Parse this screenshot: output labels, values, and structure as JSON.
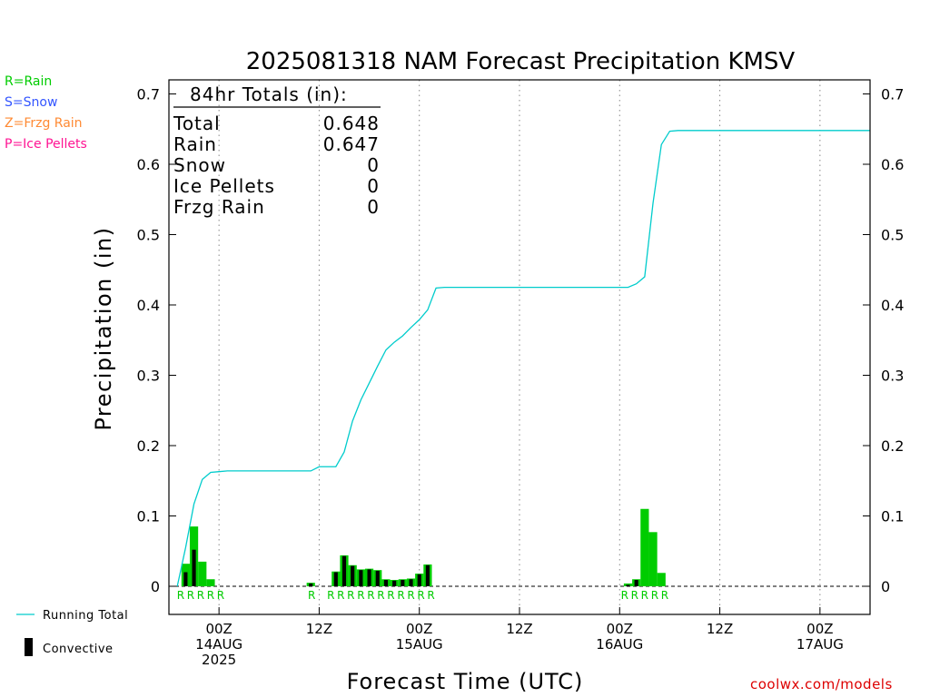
{
  "colors": {
    "rain": "#00cc00",
    "snow": "#3355ff",
    "frzg_rain": "#ff8a33",
    "ice_pellets": "#ff1493",
    "running_total": "#00cccc",
    "convective": "#000000",
    "watermark": "#dd0000"
  },
  "type_legend": [
    {
      "label": "R=Rain",
      "color": "#00cc00"
    },
    {
      "label": "S=Snow",
      "color": "#3355ff"
    },
    {
      "label": "Z=Frzg Rain",
      "color": "#ff8a33"
    },
    {
      "label": "P=Ice Pellets",
      "color": "#ff1493"
    }
  ],
  "series_legend": {
    "running_total": "Running Total",
    "convective": "Convective"
  },
  "watermark": "coolwx.com/models",
  "chart_data": {
    "type": "bar",
    "title": "2025081318 NAM Forecast Precipitation KMSV",
    "xlabel": "Forecast Time (UTC)",
    "ylabel": "Precipitation (in)",
    "ylim": [
      -0.04,
      0.72
    ],
    "yticks": [
      0,
      0.1,
      0.2,
      0.3,
      0.4,
      0.5,
      0.6,
      0.7
    ],
    "ytick_labels": [
      "0",
      "0.1",
      "0.2",
      "0.3",
      "0.4",
      "0.5",
      "0.6",
      "0.7"
    ],
    "x_unit": "forecast hour",
    "xlim": [
      0,
      84
    ],
    "xticks": [
      {
        "hour": 6,
        "lines": [
          "00Z",
          "14AUG",
          "2025"
        ]
      },
      {
        "hour": 18,
        "lines": [
          "12Z"
        ]
      },
      {
        "hour": 30,
        "lines": [
          "00Z",
          "15AUG"
        ]
      },
      {
        "hour": 42,
        "lines": [
          "12Z"
        ]
      },
      {
        "hour": 54,
        "lines": [
          "00Z",
          "16AUG"
        ]
      },
      {
        "hour": 66,
        "lines": [
          "12Z"
        ]
      },
      {
        "hour": 78,
        "lines": [
          "00Z",
          "17AUG"
        ]
      }
    ],
    "grid": "vertical dotted at ticks",
    "totals_box": {
      "header": "84hr Totals (in):",
      "rows": [
        {
          "label": "Total",
          "value": "0.648"
        },
        {
          "label": "Rain",
          "value": "0.647"
        },
        {
          "label": "Snow",
          "value": "0"
        },
        {
          "label": "Ice Pellets",
          "value": "0"
        },
        {
          "label": "Frzg Rain",
          "value": "0"
        }
      ]
    },
    "hourly_bars": {
      "hours": [
        2,
        3,
        4,
        5,
        17,
        20,
        21,
        22,
        23,
        24,
        25,
        26,
        27,
        28,
        29,
        30,
        31,
        55,
        56,
        57,
        58,
        59
      ],
      "total": [
        0.032,
        0.085,
        0.035,
        0.01,
        0.005,
        0.021,
        0.044,
        0.03,
        0.024,
        0.025,
        0.023,
        0.01,
        0.009,
        0.01,
        0.011,
        0.018,
        0.031,
        0.004,
        0.01,
        0.11,
        0.077,
        0.019
      ],
      "convective": [
        0.02,
        0.052,
        0.0,
        0.0,
        0.004,
        0.02,
        0.043,
        0.029,
        0.023,
        0.024,
        0.022,
        0.009,
        0.008,
        0.009,
        0.01,
        0.017,
        0.03,
        0.002,
        0.009,
        0.0,
        0.0,
        0.0
      ],
      "type_marks": [
        "R",
        "R",
        "R",
        "R",
        "R",
        "R",
        "R",
        "R",
        "R",
        "R",
        "R",
        "R",
        "R",
        "R",
        "R",
        "R",
        "R",
        "R",
        "R",
        "R",
        "R",
        "R"
      ],
      "type_mark_hours": [
        1.4,
        2.6,
        3.8,
        5.0,
        6.2,
        17.1,
        19.4,
        20.6,
        21.8,
        23.0,
        24.2,
        25.4,
        26.6,
        27.8,
        29.0,
        30.2,
        31.4,
        54.6,
        55.8,
        57.0,
        58.2,
        59.4
      ]
    },
    "series": [
      {
        "name": "Running Total",
        "x": [
          1,
          2,
          3,
          4,
          5,
          6,
          7,
          8,
          9,
          10,
          11,
          12,
          13,
          14,
          15,
          16,
          17,
          18,
          19,
          20,
          21,
          22,
          23,
          24,
          25,
          26,
          27,
          28,
          29,
          30,
          31,
          32,
          33,
          34,
          35,
          36,
          37,
          38,
          39,
          40,
          41,
          42,
          43,
          44,
          45,
          46,
          47,
          48,
          49,
          50,
          51,
          52,
          53,
          54,
          55,
          56,
          57,
          58,
          59,
          60,
          61,
          62,
          63,
          64,
          65,
          66,
          67,
          68,
          69,
          70,
          71,
          72,
          73,
          74,
          75,
          76,
          77,
          78,
          79,
          80,
          81,
          82,
          83,
          84
        ],
        "y": [
          0.0,
          0.055,
          0.117,
          0.152,
          0.162,
          0.163,
          0.164,
          0.164,
          0.164,
          0.164,
          0.164,
          0.164,
          0.164,
          0.164,
          0.164,
          0.164,
          0.164,
          0.17,
          0.17,
          0.17,
          0.191,
          0.235,
          0.265,
          0.289,
          0.313,
          0.336,
          0.347,
          0.356,
          0.368,
          0.379,
          0.393,
          0.424,
          0.425,
          0.425,
          0.425,
          0.425,
          0.425,
          0.425,
          0.425,
          0.425,
          0.425,
          0.425,
          0.425,
          0.425,
          0.425,
          0.425,
          0.425,
          0.425,
          0.425,
          0.425,
          0.425,
          0.425,
          0.425,
          0.425,
          0.425,
          0.43,
          0.44,
          0.545,
          0.628,
          0.647,
          0.648,
          0.648,
          0.648,
          0.648,
          0.648,
          0.648,
          0.648,
          0.648,
          0.648,
          0.648,
          0.648,
          0.648,
          0.648,
          0.648,
          0.648,
          0.648,
          0.648,
          0.648,
          0.648,
          0.648,
          0.648,
          0.648,
          0.648,
          0.648
        ]
      }
    ]
  }
}
